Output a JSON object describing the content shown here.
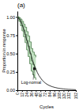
{
  "chart_data": {
    "type": "line",
    "title": "(a)",
    "x_label": "Cycles",
    "y_label": "Proportion in response",
    "xlim": [
      0,
      152
    ],
    "ylim": [
      0.0,
      1.08
    ],
    "xticks": [
      0,
      12,
      24,
      36,
      48,
      60,
      72,
      84,
      96,
      108,
      120,
      132,
      152
    ],
    "yticks": [
      {
        "value": 0.0,
        "label": "0.00"
      },
      0.25,
      {
        "value": 0.5,
        "label": "0.50"
      },
      0.75,
      {
        "value": 1.0,
        "label": "1.00"
      }
    ],
    "series": [
      {
        "type": "area",
        "color": "#b8ddb8",
        "x": [
          0,
          4,
          8,
          12,
          16,
          20,
          24,
          28,
          32,
          36,
          40,
          44,
          48
        ],
        "values": [
          1.0,
          0.99,
          0.97,
          0.94,
          0.9,
          0.86,
          0.8,
          0.74,
          0.66,
          0.57,
          0.52,
          0.48,
          0.45
        ],
        "lower": [
          1.0,
          0.94,
          0.88,
          0.81,
          0.73,
          0.65,
          0.55,
          0.46,
          0.36,
          0.26,
          0.21,
          0.17,
          0.14
        ]
      },
      {
        "type": "step",
        "color": "#4a7a4a",
        "x": [
          0,
          4,
          8,
          12,
          16,
          20,
          24,
          28,
          32,
          36,
          40,
          44,
          48
        ],
        "values": [
          1.0,
          0.97,
          0.93,
          0.88,
          0.82,
          0.76,
          0.68,
          0.6,
          0.5,
          0.4,
          0.35,
          0.3,
          0.27
        ]
      },
      {
        "type": "step",
        "color": "#4a7a4a",
        "x": [
          0,
          4,
          8,
          12,
          16,
          20,
          24,
          28,
          32,
          36,
          40,
          44,
          48
        ],
        "values": [
          1.0,
          0.99,
          0.97,
          0.94,
          0.9,
          0.86,
          0.8,
          0.74,
          0.66,
          0.57,
          0.52,
          0.48,
          0.45
        ]
      },
      {
        "type": "step",
        "color": "#4a7a4a",
        "x": [
          0,
          4,
          8,
          12,
          16,
          20,
          24,
          28,
          32,
          36,
          40,
          44,
          48
        ],
        "values": [
          1.0,
          0.94,
          0.88,
          0.81,
          0.73,
          0.65,
          0.55,
          0.46,
          0.36,
          0.26,
          0.21,
          0.17,
          0.14
        ]
      },
      {
        "type": "line",
        "color": "#222222",
        "x": [
          0,
          4,
          8,
          12,
          16,
          20,
          24,
          28,
          32,
          36,
          40,
          44,
          48,
          52,
          56,
          60,
          64,
          68,
          72,
          76,
          80,
          84,
          88,
          92,
          96,
          100,
          104,
          108,
          112,
          116,
          120,
          124,
          128,
          132,
          136,
          140,
          144,
          148,
          152
        ],
        "values": [
          1.0,
          0.98,
          0.95,
          0.9,
          0.84,
          0.77,
          0.69,
          0.62,
          0.54,
          0.47,
          0.4,
          0.34,
          0.29,
          0.24,
          0.2,
          0.17,
          0.14,
          0.12,
          0.1,
          0.085,
          0.072,
          0.062,
          0.053,
          0.046,
          0.04,
          0.035,
          0.03,
          0.026,
          0.023,
          0.02,
          0.018,
          0.016,
          0.014,
          0.012,
          0.011,
          0.01,
          0.009,
          0.008,
          0.007
        ]
      },
      {
        "type": "scatter",
        "marker": "square",
        "color": "#222222",
        "x": [
          44
        ],
        "values": [
          0.295
        ]
      }
    ],
    "annotations": [
      {
        "text": "Log-normal",
        "x": 44,
        "y": 0.295,
        "text_x": 10,
        "text_y": 0.09
      }
    ]
  }
}
